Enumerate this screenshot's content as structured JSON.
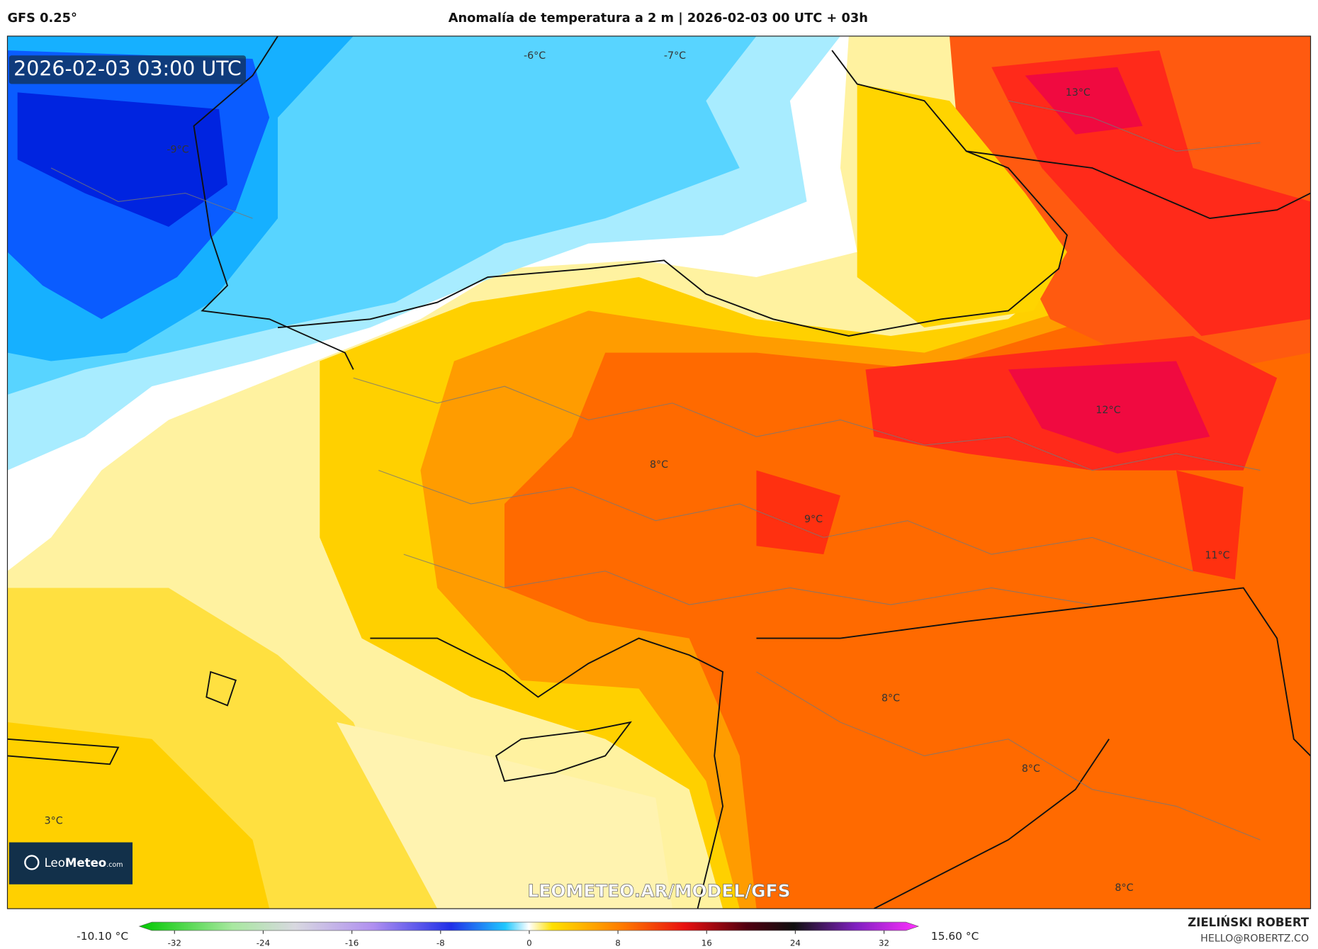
{
  "header": {
    "model": "GFS 0.25°",
    "title": "Anomalía de temperatura a 2 m | 2026-02-03 00 UTC + 03h"
  },
  "map": {
    "timestamp": "2026-02-03 03:00 UTC",
    "labels": [
      "-6°C",
      "-7°C",
      "-9°C",
      "13°C",
      "12°C",
      "8°C",
      "9°C",
      "11°C",
      "8°C",
      "8°C",
      "3°C",
      "8°C"
    ],
    "watermark": "LEOMETEO.AR/MODEL/GFS",
    "logo": {
      "name": "Leo",
      "bold": "Meteo",
      "suffix": ".com"
    }
  },
  "colorbar": {
    "min_label": "-10.10 °C",
    "max_label": "15.60 °C",
    "ticks": [
      -32,
      -24,
      -16,
      -8,
      0,
      8,
      16,
      24,
      32
    ]
  },
  "footer": {
    "author": "ZIELIŃSKI ROBERT",
    "email": "HELLO@ROBERTZ.CO"
  }
}
